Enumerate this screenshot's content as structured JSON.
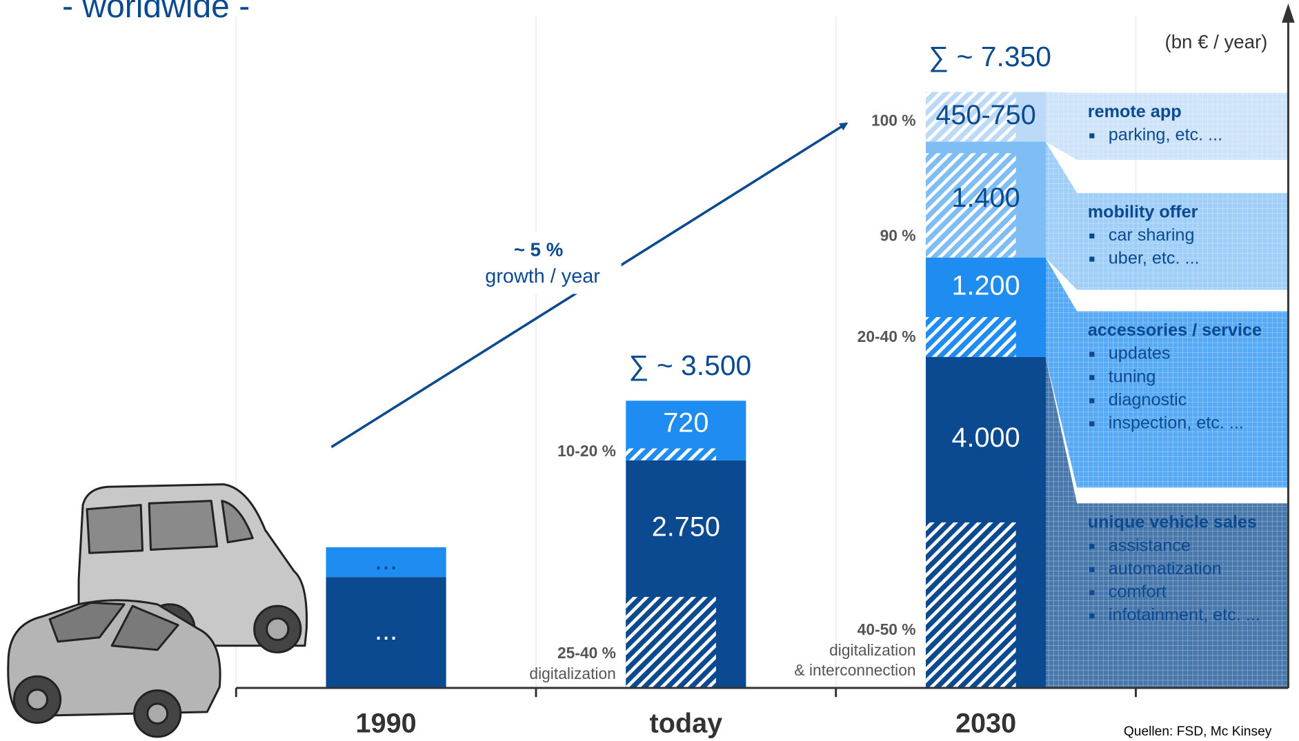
{
  "chart_data": {
    "type": "bar",
    "stacked": true,
    "title": "- worldwide -",
    "unit_label": "(bn € / year)",
    "categories": [
      "1990",
      "today",
      "2030"
    ],
    "ylim": [
      0,
      8200
    ],
    "series": [
      {
        "name": "unique vehicle sales",
        "color": "#0b4a90",
        "items": [
          "assistance",
          "automatization",
          "comfort",
          "infotainment, etc. ..."
        ],
        "values": [
          1340,
          2750,
          4000
        ],
        "value_labels": [
          "...",
          "2.750",
          "4.000"
        ],
        "digital_shares": [
          null,
          40,
          50
        ],
        "digital_share_labels": [
          null,
          "25-40 %",
          "40-50 %"
        ]
      },
      {
        "name": "accessories / service",
        "color": "#1e8cf0",
        "items": [
          "updates",
          "tuning",
          "diagnostic",
          "inspection, etc. ..."
        ],
        "values": [
          360,
          720,
          1200
        ],
        "value_labels": [
          "...",
          "720",
          "1.200"
        ],
        "digital_shares": [
          null,
          20,
          40
        ],
        "digital_share_labels": [
          null,
          "10-20 %",
          "20-40 %"
        ]
      },
      {
        "name": "mobility offer",
        "color": "#7fbef5",
        "items": [
          "car sharing",
          "uber, etc. ..."
        ],
        "values": [
          null,
          null,
          1400
        ],
        "value_labels": [
          null,
          null,
          "1.400"
        ],
        "digital_shares": [
          null,
          null,
          90
        ],
        "digital_share_labels": [
          null,
          null,
          "90 %"
        ]
      },
      {
        "name": "remote app",
        "color": "#bcdaf7",
        "items": [
          "parking, etc. ..."
        ],
        "values": [
          null,
          null,
          600
        ],
        "value_labels": [
          null,
          null,
          "450-750"
        ],
        "digital_shares": [
          null,
          null,
          100
        ],
        "digital_share_labels": [
          null,
          null,
          "100 %"
        ]
      }
    ],
    "digital_notes": [
      null,
      [
        "digitalization"
      ],
      [
        "digitalization",
        "& interconnection"
      ]
    ],
    "total_labels": [
      null,
      "∑ ~ 3.500",
      "∑ ~ 7.350"
    ],
    "growth_rate": "~ 5 %",
    "growth_text": "growth / year",
    "source": "Quellen: FSD, Mc Kinsey"
  }
}
